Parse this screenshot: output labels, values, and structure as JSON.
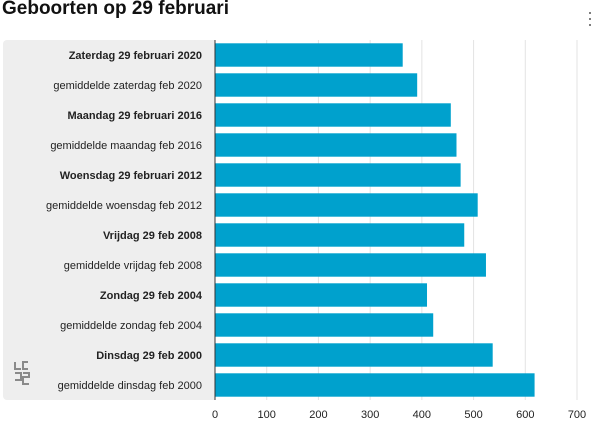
{
  "title": "Geboorten op 29 februari",
  "menu_icon": "kebab-menu-icon",
  "logo_icon": "cbs-logo-icon",
  "chart_data": {
    "type": "bar",
    "orientation": "horizontal",
    "title": "Geboorten op 29 februari",
    "categories": [
      "Zaterdag 29 februari 2020",
      "gemiddelde zaterdag feb 2020",
      "Maandag 29 februari 2016",
      "gemiddelde maandag feb 2016",
      "Woensdag 29 februari 2012",
      "gemiddelde woensdag feb 2012",
      "Vrijdag 29 feb 2008",
      "gemiddelde vrijdag feb 2008",
      "Zondag 29 feb 2004",
      "gemiddelde zondag feb 2004",
      "Dinsdag 29 feb 2000",
      "gemiddelde dinsdag feb 2000"
    ],
    "bold": [
      true,
      false,
      true,
      false,
      true,
      false,
      true,
      false,
      true,
      false,
      true,
      false
    ],
    "values": [
      362,
      390,
      455,
      466,
      474,
      507,
      481,
      523,
      409,
      421,
      536,
      617
    ],
    "xlim": [
      0,
      700
    ],
    "xticks": [
      "0",
      "100",
      "200",
      "300",
      "400",
      "500",
      "600",
      "700"
    ],
    "xlabel": "",
    "ylabel": "",
    "grid": true,
    "bar_color": "#00a1cd"
  }
}
